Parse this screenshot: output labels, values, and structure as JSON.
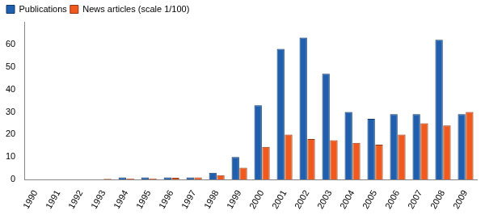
{
  "chart_data": {
    "type": "bar",
    "categories": [
      "1990",
      "1991",
      "1992",
      "1993",
      "1994",
      "1995",
      "1996",
      "1997",
      "1998",
      "1999",
      "2000",
      "2001",
      "2002",
      "2003",
      "2004",
      "2005",
      "2006",
      "2007",
      "2008",
      "2009"
    ],
    "series": [
      {
        "name": "Publications",
        "color": "#1f5fad",
        "values": [
          0,
          0,
          0,
          0,
          1,
          1,
          1,
          1,
          3,
          10,
          33,
          58,
          63,
          47,
          30,
          27,
          29,
          29,
          62,
          29
        ]
      },
      {
        "name": "News articles (scale 1/100)",
        "color": "#f05a1e",
        "values": [
          0,
          0,
          0,
          0.3,
          0.5,
          0.5,
          0.8,
          1,
          2,
          5.3,
          14.5,
          20,
          18,
          17.5,
          16.3,
          15.5,
          20,
          25,
          24,
          30
        ]
      }
    ],
    "ylim": [
      0,
      70
    ],
    "yticks": [
      0,
      10,
      20,
      30,
      40,
      50,
      60
    ],
    "grid": false,
    "legend": "upper left"
  }
}
